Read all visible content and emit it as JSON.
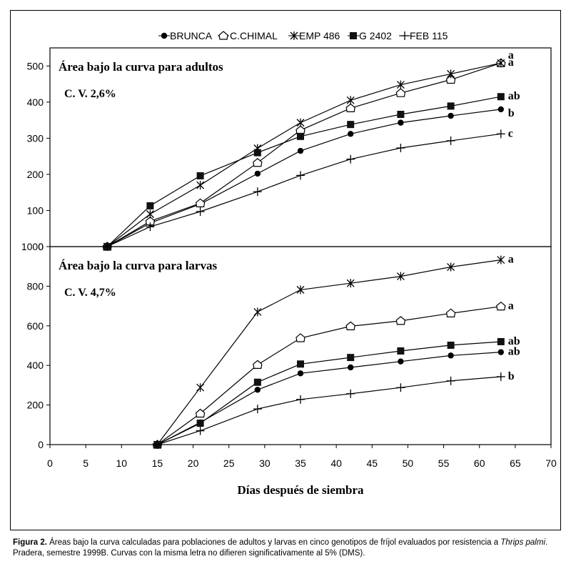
{
  "chart_data": {
    "type": "line",
    "xlabel": "Días después de siembra",
    "xlim": [
      0,
      70
    ],
    "xticks": [
      0,
      5,
      10,
      15,
      20,
      25,
      30,
      35,
      40,
      45,
      50,
      55,
      60,
      65,
      70
    ],
    "legend": {
      "placement": "top-center",
      "entries": [
        {
          "name": "BRUNCA",
          "marker": "filled-circle"
        },
        {
          "name": "C.CHIMAL",
          "marker": "open-pentagon"
        },
        {
          "name": "EMP 486",
          "marker": "star"
        },
        {
          "name": "G 2402",
          "marker": "filled-square"
        },
        {
          "name": "FEB 115",
          "marker": "plus"
        }
      ]
    },
    "panels": [
      {
        "title": "Área bajo la curva para adultos",
        "cv": "C. V. 2,6%",
        "ylim": [
          0,
          550
        ],
        "yticks": [
          0,
          100,
          200,
          300,
          400,
          500
        ],
        "series": [
          {
            "name": "BRUNCA",
            "marker": "filled-circle",
            "x": [
              8,
              14,
              21,
              29,
              35,
              42,
              49,
              56,
              63
            ],
            "y": [
              0,
              65,
              118,
              202,
              265,
              312,
              343,
              362,
              380
            ],
            "letter": "b"
          },
          {
            "name": "C.CHIMAL",
            "marker": "open-pentagon",
            "x": [
              8,
              14,
              21,
              29,
              35,
              42,
              49,
              56,
              63
            ],
            "y": [
              0,
              70,
              120,
              232,
              322,
              383,
              425,
              462,
              508
            ],
            "letter": "a"
          },
          {
            "name": "EMP 486",
            "marker": "star",
            "x": [
              8,
              14,
              21,
              29,
              35,
              42,
              49,
              56,
              63
            ],
            "y": [
              0,
              90,
              170,
              272,
              343,
              405,
              448,
              478,
              508
            ],
            "letter": "a"
          },
          {
            "name": "G 2402",
            "marker": "filled-square",
            "x": [
              8,
              14,
              21,
              29,
              35,
              42,
              49,
              56,
              63
            ],
            "y": [
              0,
              113,
              196,
              260,
              305,
              338,
              366,
              389,
              415
            ],
            "letter": "ab"
          },
          {
            "name": "FEB 115",
            "marker": "plus",
            "x": [
              8,
              14,
              21,
              29,
              35,
              42,
              49,
              56,
              63
            ],
            "y": [
              0,
              55,
              97,
              152,
              197,
              242,
              273,
              293,
              312
            ],
            "letter": "c"
          }
        ]
      },
      {
        "title": "Área bajo la curva para larvas",
        "cv": "C. V. 4,7%",
        "ylim": [
          0,
          1000
        ],
        "yticks": [
          0,
          200,
          400,
          600,
          800,
          1000
        ],
        "series": [
          {
            "name": "BRUNCA",
            "marker": "filled-circle",
            "x": [
              15,
              21,
              29,
              35,
              42,
              49,
              56,
              63
            ],
            "y": [
              0,
              112,
              277,
              360,
              390,
              420,
              450,
              467
            ],
            "letter": "ab"
          },
          {
            "name": "C.CHIMAL",
            "marker": "open-pentagon",
            "x": [
              15,
              21,
              29,
              35,
              42,
              49,
              56,
              63
            ],
            "y": [
              0,
              157,
              403,
              538,
              598,
              625,
              663,
              698
            ],
            "letter": "a"
          },
          {
            "name": "EMP 486",
            "marker": "star",
            "x": [
              15,
              21,
              29,
              35,
              42,
              49,
              56,
              63
            ],
            "y": [
              0,
              288,
              670,
              782,
              815,
              850,
              897,
              933
            ],
            "letter": "a"
          },
          {
            "name": "G 2402",
            "marker": "filled-square",
            "x": [
              15,
              21,
              29,
              35,
              42,
              49,
              56,
              63
            ],
            "y": [
              0,
              108,
              315,
              407,
              440,
              473,
              502,
              520
            ],
            "letter": "ab"
          },
          {
            "name": "FEB 115",
            "marker": "plus",
            "x": [
              15,
              21,
              29,
              35,
              42,
              49,
              56,
              63
            ],
            "y": [
              0,
              70,
              180,
              228,
              257,
              288,
              322,
              343
            ],
            "letter": "b"
          }
        ]
      }
    ]
  },
  "caption": {
    "label": "Figura 2.",
    "text": " Áreas bajo la curva calculadas para poblaciones de adultos y larvas en cinco genotipos de fríjol evaluados por resistencia a ",
    "species": "Thrips palmi",
    "text_end": ". Pradera, semestre 1999B.  Curvas con la misma letra no difieren significativamente al 5% (DMS)."
  }
}
